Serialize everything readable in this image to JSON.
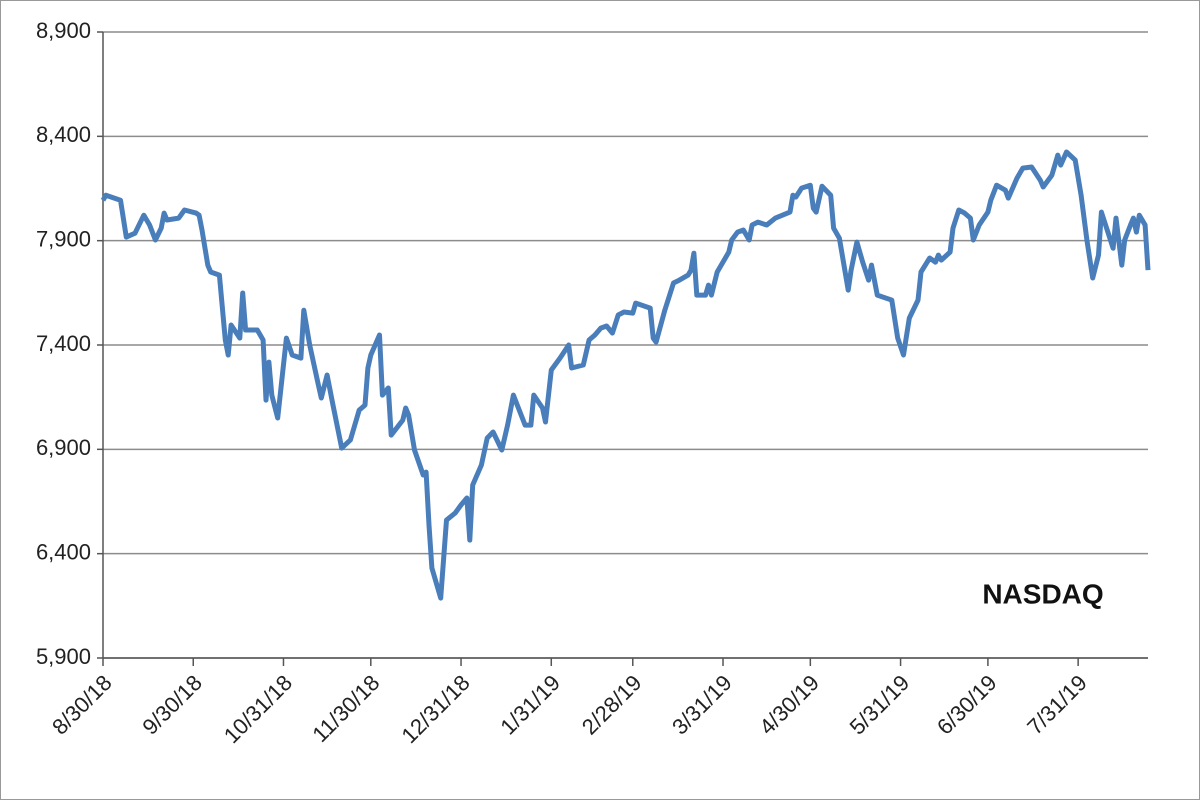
{
  "chart_data": {
    "type": "line",
    "annotation": "NASDAQ",
    "color": "#4a7ebb",
    "grid": true,
    "x": [
      "8/30/18",
      "8/31/18",
      "9/5/18",
      "9/7/18",
      "9/10/18",
      "9/13/18",
      "9/15/18",
      "9/17/18",
      "9/19/18",
      "9/20/18",
      "9/21/18",
      "9/25/18",
      "9/27/18",
      "10/1/18",
      "10/2/18",
      "10/3/18",
      "10/5/18",
      "10/6/18",
      "10/9/18",
      "10/11/18",
      "10/12/18",
      "10/13/18",
      "10/16/18",
      "10/17/18",
      "10/18/18",
      "10/22/18",
      "10/24/18",
      "10/25/18",
      "10/26/18",
      "10/27/18",
      "10/29/18",
      "11/1/18",
      "11/3/18",
      "11/6/18",
      "11/7/18",
      "11/9/18",
      "11/12/18",
      "11/13/18",
      "11/15/18",
      "11/17/18",
      "11/20/18",
      "11/23/18",
      "11/26/18",
      "11/28/18",
      "11/29/18",
      "11/30/18",
      "12/3/18",
      "12/4/18",
      "12/6/18",
      "12/7/18",
      "12/11/18",
      "12/12/18",
      "12/13/18",
      "12/15/18",
      "12/18/18",
      "12/19/18",
      "12/20/18",
      "12/21/18",
      "12/24/18",
      "12/26/18",
      "12/29/18",
      "12/31/18",
      "1/2/19",
      "1/3/19",
      "1/4/19",
      "1/7/19",
      "1/9/19",
      "1/11/19",
      "1/14/19",
      "1/16/19",
      "1/18/19",
      "1/22/19",
      "1/24/19",
      "1/25/19",
      "1/28/19",
      "1/29/19",
      "1/31/19",
      "2/3/19",
      "2/6/19",
      "2/7/19",
      "2/11/19",
      "2/13/19",
      "2/15/19",
      "2/17/19",
      "2/19/19",
      "2/21/19",
      "2/23/19",
      "2/25/19",
      "2/28/19",
      "3/1/19",
      "3/6/19",
      "3/7/19",
      "3/8/19",
      "3/11/19",
      "3/14/19",
      "3/16/19",
      "3/19/19",
      "3/20/19",
      "3/21/19",
      "3/22/19",
      "3/25/19",
      "3/26/19",
      "3/27/19",
      "3/29/19",
      "4/2/19",
      "4/3/19",
      "4/5/19",
      "4/7/19",
      "4/9/19",
      "4/10/19",
      "4/12/19",
      "4/15/19",
      "4/18/19",
      "4/23/19",
      "4/24/19",
      "4/25/19",
      "4/27/19",
      "4/30/19",
      "5/1/19",
      "5/2/19",
      "5/4/19",
      "5/7/19",
      "5/8/19",
      "5/10/19",
      "5/13/19",
      "5/14/19",
      "5/16/19",
      "5/18/19",
      "5/20/19",
      "5/21/19",
      "5/23/19",
      "5/28/19",
      "5/30/19",
      "6/1/19",
      "6/3/19",
      "6/6/19",
      "6/7/19",
      "6/10/19",
      "6/12/19",
      "6/13/19",
      "6/14/19",
      "6/17/19",
      "6/18/19",
      "6/20/19",
      "6/22/19",
      "6/24/19",
      "6/25/19",
      "6/27/19",
      "6/30/19",
      "7/1/19",
      "7/3/19",
      "7/6/19",
      "7/7/19",
      "7/10/19",
      "7/12/19",
      "7/15/19",
      "7/18/19",
      "7/19/19",
      "7/22/19",
      "7/24/19",
      "7/25/19",
      "7/27/19",
      "7/30/19",
      "8/1/19",
      "8/3/19",
      "8/5/19",
      "8/7/19",
      "8/8/19",
      "8/10/19",
      "8/12/19",
      "8/13/19",
      "8/15/19",
      "8/16/19",
      "8/18/19",
      "8/19/19",
      "8/20/19",
      "8/21/19",
      "8/23/19",
      "8/24/19"
    ],
    "values": [
      8094,
      8118,
      8094,
      7917,
      7936,
      8022,
      7975,
      7903,
      7960,
      8032,
      7999,
      8008,
      8047,
      8032,
      8022,
      7951,
      7783,
      7750,
      7735,
      7424,
      7352,
      7496,
      7433,
      7649,
      7472,
      7472,
      7424,
      7136,
      7318,
      7160,
      7050,
      7433,
      7352,
      7337,
      7567,
      7400,
      7208,
      7146,
      7256,
      7112,
      6906,
      6945,
      7088,
      7112,
      7290,
      7352,
      7448,
      7160,
      7194,
      6968,
      7040,
      7098,
      7064,
      6897,
      6777,
      6791,
      6537,
      6331,
      6187,
      6561,
      6595,
      6633,
      6667,
      6465,
      6729,
      6825,
      6954,
      6983,
      6897,
      7016,
      7160,
      7016,
      7016,
      7160,
      7098,
      7031,
      7280,
      7337,
      7400,
      7290,
      7304,
      7424,
      7448,
      7481,
      7491,
      7457,
      7544,
      7558,
      7553,
      7601,
      7577,
      7433,
      7414,
      7567,
      7697,
      7711,
      7735,
      7759,
      7840,
      7639,
      7639,
      7687,
      7639,
      7750,
      7845,
      7903,
      7941,
      7951,
      7903,
      7975,
      7989,
      7975,
      8008,
      8037,
      8118,
      8109,
      8152,
      8166,
      8056,
      8037,
      8161,
      8118,
      7960,
      7912,
      7663,
      7759,
      7893,
      7797,
      7711,
      7783,
      7639,
      7615,
      7433,
      7352,
      7529,
      7615,
      7750,
      7817,
      7797,
      7831,
      7807,
      7845,
      7960,
      8047,
      8032,
      8008,
      7903,
      7975,
      8037,
      8094,
      8166,
      8142,
      8104,
      8200,
      8248,
      8253,
      8190,
      8157,
      8214,
      8310,
      8262,
      8325,
      8286,
      8118,
      7903,
      7721,
      7831,
      8037,
      7951,
      7864,
      8008,
      7783,
      7903,
      7975,
      8008,
      7941,
      8022,
      7975,
      7759
    ],
    "xlim": [
      "8/30/18",
      "8/24/19"
    ],
    "xticks": [
      "8/30/18",
      "9/30/18",
      "10/31/18",
      "11/30/18",
      "12/31/18",
      "1/31/19",
      "2/28/19",
      "3/31/19",
      "4/30/19",
      "5/31/19",
      "6/30/19",
      "7/31/19"
    ],
    "ylim": [
      5900,
      8900
    ],
    "yticks": [
      {
        "value": 5900,
        "label": "5,900"
      },
      {
        "value": 6400,
        "label": "6,400"
      },
      {
        "value": 6900,
        "label": "6,900"
      },
      {
        "value": 7400,
        "label": "7,400"
      },
      {
        "value": 7900,
        "label": "7,900"
      },
      {
        "value": 8400,
        "label": "8,400"
      },
      {
        "value": 8900,
        "label": "8,900"
      }
    ]
  }
}
